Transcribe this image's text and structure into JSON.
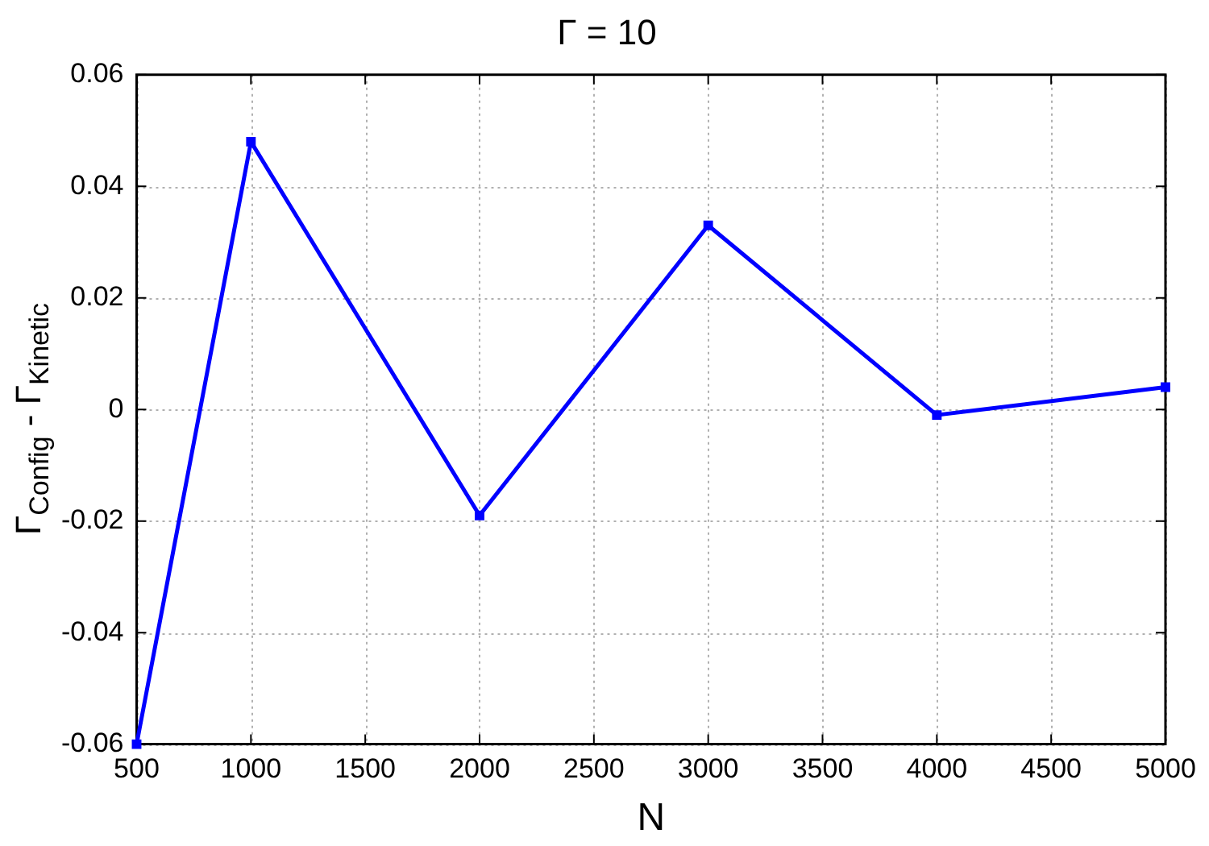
{
  "chart_data": {
    "type": "line",
    "title": "Γ = 10",
    "xlabel": "N",
    "ylabel": "Γ$_{Config}$ - Γ$_{Kinetic}$",
    "x": [
      500,
      1000,
      2000,
      3000,
      4000,
      5000
    ],
    "series": [
      {
        "color": "#0000ff",
        "values": [
          -0.06,
          0.048,
          -0.019,
          0.033,
          -0.001,
          0.004
        ]
      }
    ],
    "xlim": [
      500,
      5000
    ],
    "ylim": [
      -0.06,
      0.06
    ],
    "xticks": [
      500,
      1000,
      1500,
      2000,
      2500,
      3000,
      3500,
      4000,
      4500,
      5000
    ],
    "yticks": [
      -0.06,
      -0.04,
      -0.02,
      0,
      0.02,
      0.04,
      0.06
    ],
    "grid": true,
    "marker": "square",
    "line_style": "solid"
  }
}
